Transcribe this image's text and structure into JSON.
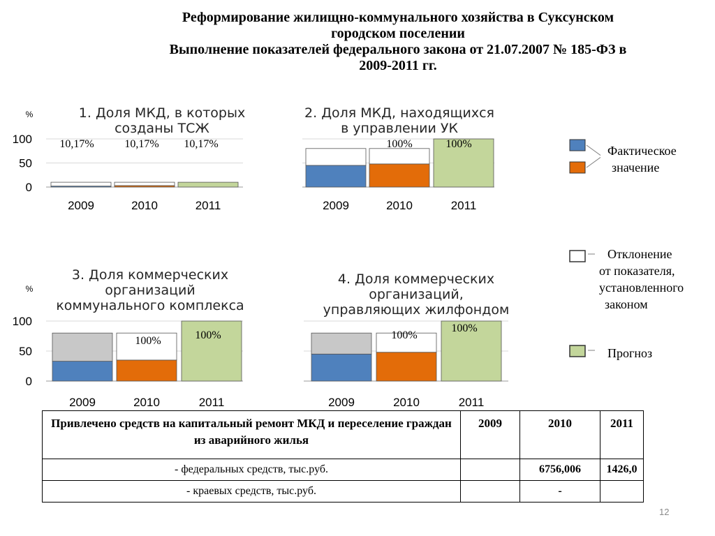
{
  "title": {
    "line1": "Реформирование жилищно-коммунального хозяйства в Суксунском",
    "line2": "городском поселении",
    "line3": "Выполнение показателей федерального закона от 21.07.2007 № 185-ФЗ в",
    "line4": "2009-2011 гг."
  },
  "colors": {
    "fact_blue": "#4f81bd",
    "fact_orange": "#e36c09",
    "deviation": "#ffffff",
    "deviation_grey": "#c8c8c8",
    "forecast": "#c3d69b"
  },
  "chart_data": [
    {
      "type": "bar",
      "title": "1. Доля МКД, в которых созданы ТСЖ",
      "ylabel": "%",
      "ylim": [
        0,
        100
      ],
      "yticks": [
        "100",
        "50",
        "0"
      ],
      "categories": [
        "2009",
        "2010",
        "2011"
      ],
      "series": [
        {
          "name": "Фактическое значение",
          "values": [
            2,
            3,
            null
          ]
        },
        {
          "name": "Отклонение от показателя, установленного законом",
          "values": [
            8,
            7,
            null
          ]
        },
        {
          "name": "Прогноз",
          "values": [
            null,
            null,
            10
          ]
        }
      ],
      "data_labels": [
        "10,17%",
        "10,17%",
        "10,17%"
      ]
    },
    {
      "type": "bar",
      "title": "2. Доля МКД, находящихся в управлении УК",
      "ylim": [
        0,
        100
      ],
      "categories": [
        "2009",
        "2010",
        "2011"
      ],
      "series": [
        {
          "name": "Фактическое значение",
          "values": [
            45,
            48,
            null
          ]
        },
        {
          "name": "Отклонение от показателя, установленного законом",
          "values": [
            35,
            32,
            null
          ]
        },
        {
          "name": "Прогноз",
          "values": [
            null,
            null,
            100
          ]
        }
      ],
      "data_labels": [
        "",
        "100%",
        "100%"
      ]
    },
    {
      "type": "bar",
      "title": "3. Доля коммерческих организаций коммунального комплекса",
      "ylabel": "%",
      "ylim": [
        0,
        100
      ],
      "yticks": [
        "100",
        "50",
        "0"
      ],
      "categories": [
        "2009",
        "2010",
        "2011"
      ],
      "series": [
        {
          "name": "Фактическое значение",
          "values": [
            33,
            35,
            null
          ]
        },
        {
          "name": "Отклонение от показателя, установленного законом",
          "values": [
            47,
            45,
            null
          ]
        },
        {
          "name": "Прогноз",
          "values": [
            null,
            null,
            100
          ]
        }
      ],
      "data_labels": [
        "",
        "100%",
        "100%"
      ]
    },
    {
      "type": "bar",
      "title": "4. Доля коммерческих организаций, управляющих жилфондом",
      "ylim": [
        0,
        100
      ],
      "categories": [
        "2009",
        "2010",
        "2011"
      ],
      "series": [
        {
          "name": "Фактическое значение",
          "values": [
            45,
            48,
            null
          ]
        },
        {
          "name": "Отклонение от показателя, установленного законом",
          "values": [
            35,
            32,
            null
          ]
        },
        {
          "name": "Прогноз",
          "values": [
            null,
            null,
            100
          ]
        }
      ],
      "data_labels": [
        "",
        "100%",
        "100%"
      ]
    }
  ],
  "legend": {
    "fact": [
      "Фактическое",
      "значение"
    ],
    "deviation": [
      "Отклонение",
      "от показателя,",
      "установленного",
      "законом"
    ],
    "forecast": "Прогноз"
  },
  "table": {
    "header": [
      "Привлечено средств на капитальный ремонт МКД и переселение граждан из аварийного жилья",
      "2009",
      "2010",
      "2011"
    ],
    "rows": [
      [
        "- федеральных средств, тыс.руб.",
        "",
        "6756,006",
        "1426,0"
      ],
      [
        "- краевых средств, тыс.руб.",
        "",
        "-",
        ""
      ]
    ]
  },
  "slide_number": "12"
}
